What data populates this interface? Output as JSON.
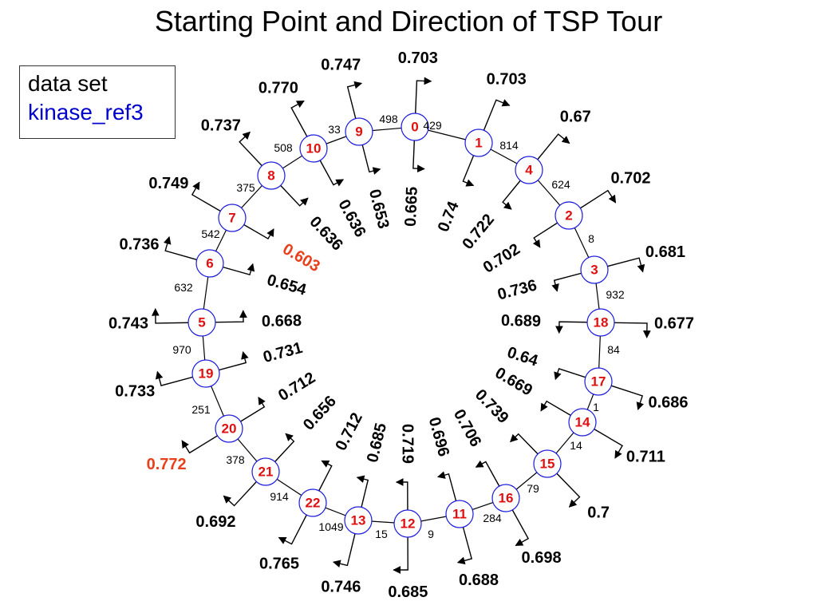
{
  "title": "Starting Point and Direction of TSP Tour",
  "legend": {
    "line1": "data set",
    "line2": "kinase_ref3"
  },
  "colors": {
    "node_text": "#e01010",
    "node_border": "#1a1adc",
    "legend_name": "#0000cc",
    "highlight_value": "#e8401a"
  },
  "tour_order": [
    "0",
    "1",
    "4",
    "2",
    "3",
    "18",
    "17",
    "14",
    "15",
    "16",
    "11",
    "12",
    "13",
    "22",
    "21",
    "20",
    "19",
    "5",
    "6",
    "7",
    "8",
    "10",
    "9"
  ],
  "edge_costs": [
    "429",
    "814",
    "624",
    "8",
    "932",
    "84",
    "1",
    "14",
    "79",
    "284",
    "9",
    "15",
    "1049",
    "914",
    "378",
    "251",
    "970",
    "632",
    "542",
    "375",
    "508",
    "33",
    "498"
  ],
  "node_values": [
    {
      "node": "0",
      "outer": "0.703",
      "inner": "0.665"
    },
    {
      "node": "1",
      "outer": "0.703",
      "inner": "0.74"
    },
    {
      "node": "4",
      "outer": "0.67",
      "inner": "0.722"
    },
    {
      "node": "2",
      "outer": "0.702",
      "inner": "0.702"
    },
    {
      "node": "3",
      "outer": "0.681",
      "inner": "0.736"
    },
    {
      "node": "18",
      "outer": "0.677",
      "inner": "0.689"
    },
    {
      "node": "17",
      "outer": "0.686",
      "inner": "0.64"
    },
    {
      "node": "14",
      "outer": "0.711",
      "inner": "0.669"
    },
    {
      "node": "15",
      "outer": "0.7",
      "inner": "0.739"
    },
    {
      "node": "16",
      "outer": "0.698",
      "inner": "0.706"
    },
    {
      "node": "11",
      "outer": "0.688",
      "inner": "0.696"
    },
    {
      "node": "12",
      "outer": "0.685",
      "inner": "0.719"
    },
    {
      "node": "13",
      "outer": "0.746",
      "inner": "0.685"
    },
    {
      "node": "22",
      "outer": "0.765",
      "inner": "0.712"
    },
    {
      "node": "21",
      "outer": "0.692",
      "inner": "0.656"
    },
    {
      "node": "20",
      "outer": "0.772",
      "inner": "0.712",
      "outer_highlight": true
    },
    {
      "node": "19",
      "outer": "0.733",
      "inner": "0.731"
    },
    {
      "node": "5",
      "outer": "0.743",
      "inner": "0.668"
    },
    {
      "node": "6",
      "outer": "0.736",
      "inner": "0.654"
    },
    {
      "node": "7",
      "outer": "0.749",
      "inner": "0.603",
      "inner_highlight": true
    },
    {
      "node": "8",
      "outer": "0.737",
      "inner": "0.636"
    },
    {
      "node": "10",
      "outer": "0.770",
      "inner": "0.636"
    },
    {
      "node": "9",
      "outer": "0.747",
      "inner": "0.653"
    }
  ]
}
